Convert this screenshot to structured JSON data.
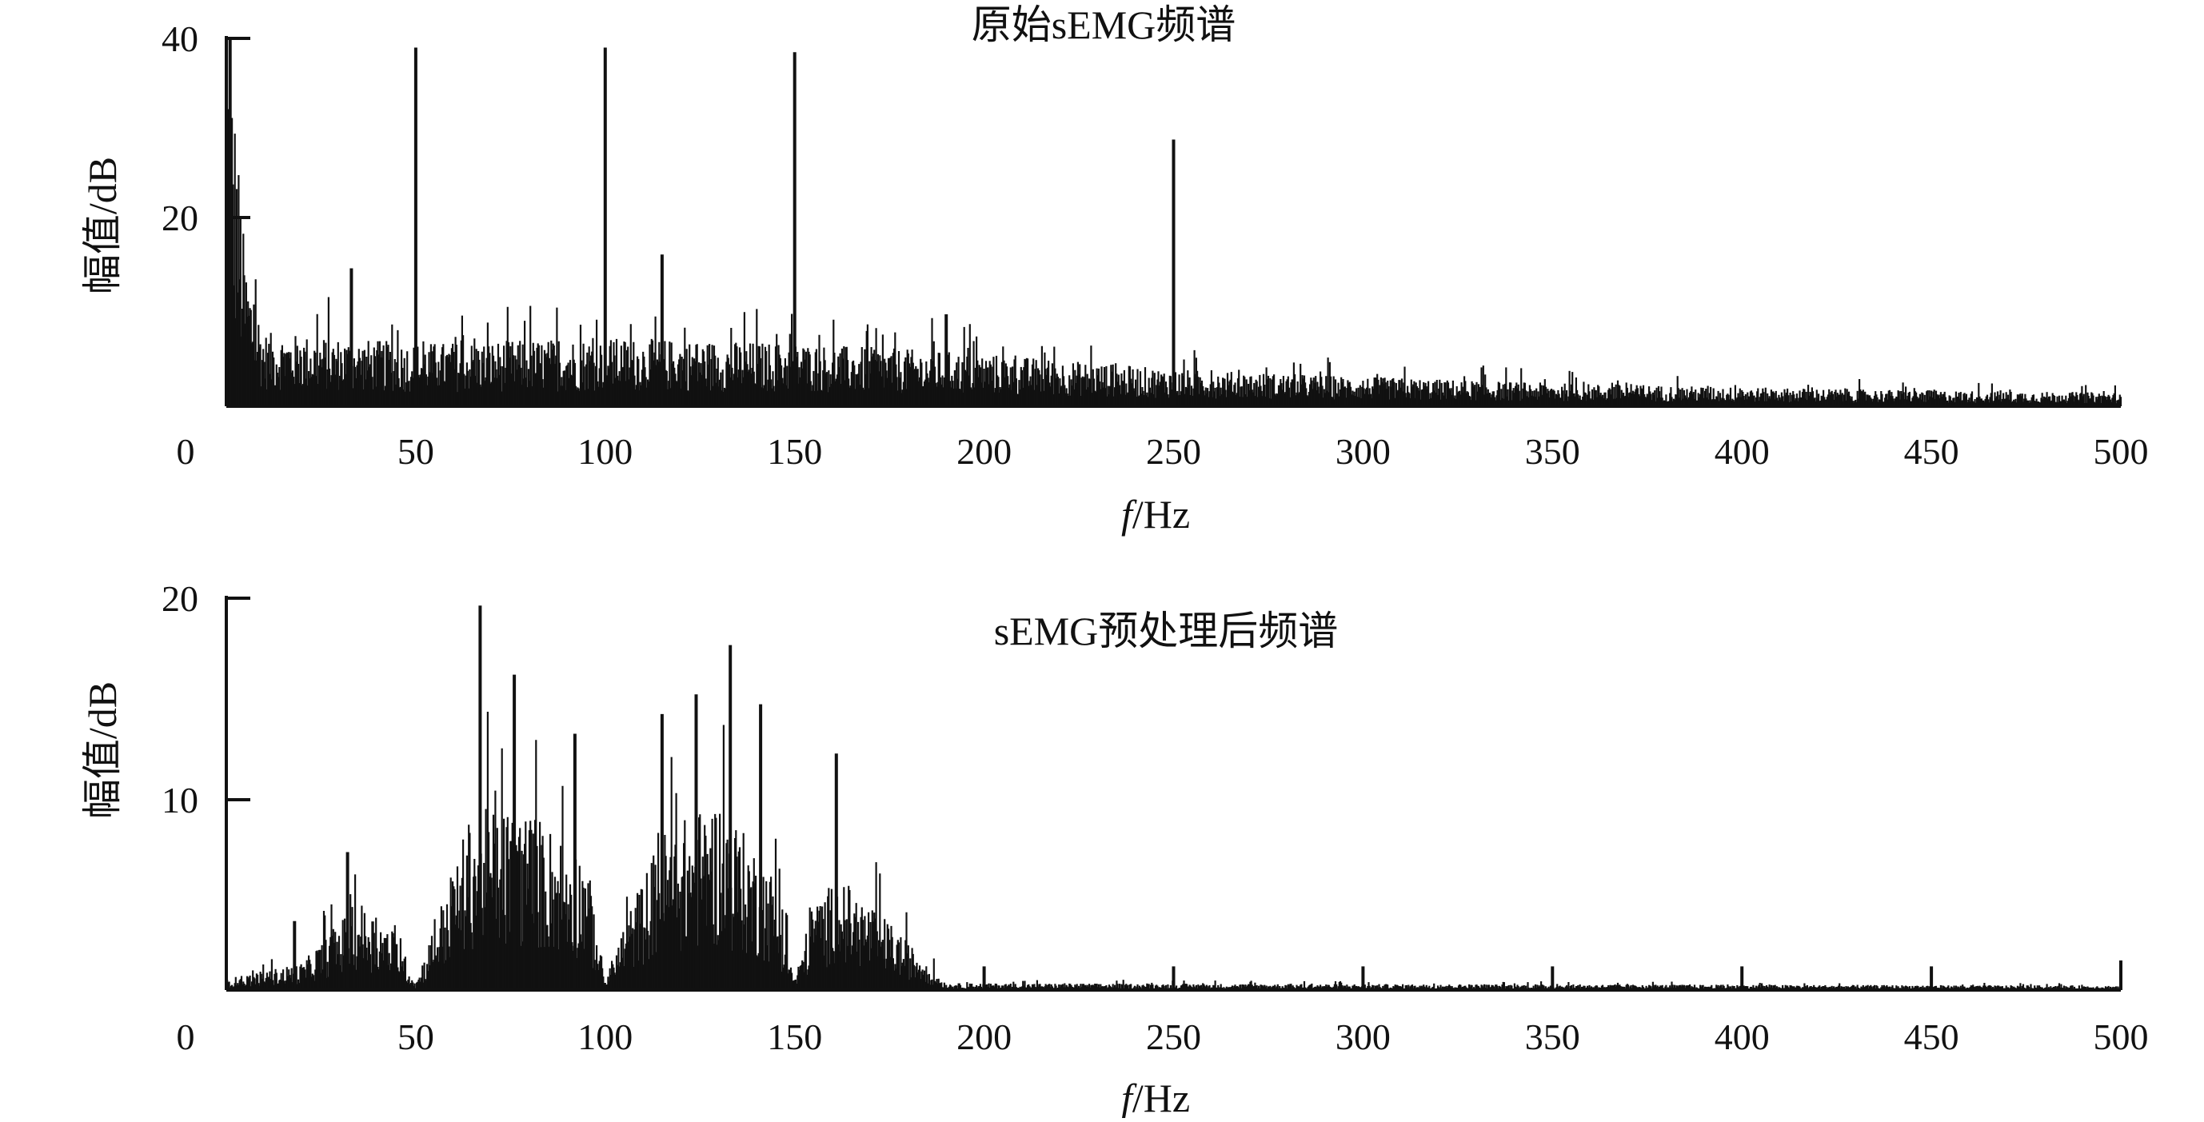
{
  "chart_data": [
    {
      "type": "line",
      "title": "原始sEMG频谱",
      "xlabel_italic": "f",
      "xlabel_unit": "/Hz",
      "ylabel": "幅值/dB",
      "xlim": [
        0,
        500
      ],
      "ylim": [
        0,
        40
      ],
      "x_ticks": [
        "0",
        "50",
        "100",
        "150",
        "200",
        "250",
        "300",
        "350",
        "400",
        "450",
        "500"
      ],
      "y_ticks": [
        "20",
        "40"
      ],
      "noise_floor": [
        {
          "f": 0,
          "db": 40
        },
        {
          "f": 2,
          "db": 30
        },
        {
          "f": 5,
          "db": 14
        },
        {
          "f": 10,
          "db": 7
        },
        {
          "f": 50,
          "db": 6
        },
        {
          "f": 100,
          "db": 6.5
        },
        {
          "f": 150,
          "db": 6
        },
        {
          "f": 200,
          "db": 5
        },
        {
          "f": 250,
          "db": 3.5
        },
        {
          "f": 300,
          "db": 2.8
        },
        {
          "f": 350,
          "db": 2.2
        },
        {
          "f": 400,
          "db": 1.8
        },
        {
          "f": 450,
          "db": 1.5
        },
        {
          "f": 500,
          "db": 1.3
        }
      ],
      "peaks": [
        {
          "f": 1,
          "db": 40
        },
        {
          "f": 33,
          "db": 15
        },
        {
          "f": 50,
          "db": 39
        },
        {
          "f": 100,
          "db": 39
        },
        {
          "f": 115,
          "db": 16.5
        },
        {
          "f": 150,
          "db": 38.5
        },
        {
          "f": 190,
          "db": 10
        },
        {
          "f": 250,
          "db": 29
        }
      ]
    },
    {
      "type": "line",
      "title": "sEMG预处理后频谱",
      "xlabel_italic": "f",
      "xlabel_unit": "/Hz",
      "ylabel": "幅值/dB",
      "xlim": [
        0,
        500
      ],
      "ylim": [
        0,
        20
      ],
      "x_ticks": [
        "0",
        "50",
        "100",
        "150",
        "200",
        "250",
        "300",
        "350",
        "400",
        "450",
        "500"
      ],
      "y_ticks": [
        "10",
        "20"
      ],
      "noise_floor": [
        {
          "f": 0,
          "db": 0.5
        },
        {
          "f": 20,
          "db": 1.2
        },
        {
          "f": 35,
          "db": 4
        },
        {
          "f": 45,
          "db": 2.5
        },
        {
          "f": 50,
          "db": 0.3
        },
        {
          "f": 55,
          "db": 3
        },
        {
          "f": 65,
          "db": 8
        },
        {
          "f": 80,
          "db": 8
        },
        {
          "f": 95,
          "db": 6
        },
        {
          "f": 100,
          "db": 0.4
        },
        {
          "f": 105,
          "db": 3
        },
        {
          "f": 115,
          "db": 7
        },
        {
          "f": 130,
          "db": 8.5
        },
        {
          "f": 145,
          "db": 5
        },
        {
          "f": 150,
          "db": 0.4
        },
        {
          "f": 155,
          "db": 4
        },
        {
          "f": 162,
          "db": 5
        },
        {
          "f": 175,
          "db": 3
        },
        {
          "f": 190,
          "db": 0.3
        },
        {
          "f": 500,
          "db": 0.2
        }
      ],
      "peaks": [
        {
          "f": 18,
          "db": 3.5
        },
        {
          "f": 32,
          "db": 7
        },
        {
          "f": 67,
          "db": 19.5
        },
        {
          "f": 76,
          "db": 16
        },
        {
          "f": 92,
          "db": 13
        },
        {
          "f": 115,
          "db": 14
        },
        {
          "f": 124,
          "db": 15
        },
        {
          "f": 133,
          "db": 17.5
        },
        {
          "f": 141,
          "db": 14.5
        },
        {
          "f": 161,
          "db": 12
        },
        {
          "f": 200,
          "db": 1.2
        },
        {
          "f": 250,
          "db": 1.2
        },
        {
          "f": 300,
          "db": 1.2
        },
        {
          "f": 350,
          "db": 1.2
        },
        {
          "f": 400,
          "db": 1.2
        },
        {
          "f": 450,
          "db": 1.2
        },
        {
          "f": 500,
          "db": 1.5
        }
      ]
    }
  ]
}
